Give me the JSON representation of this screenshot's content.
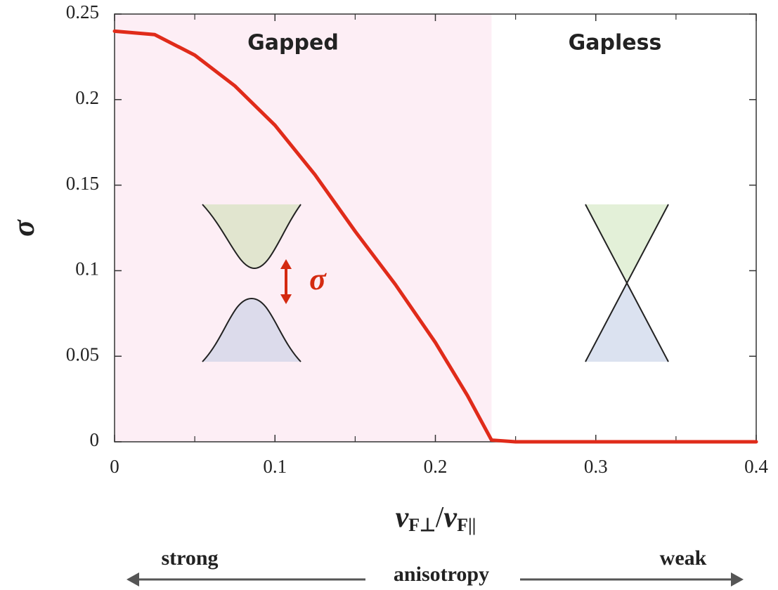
{
  "chart_data": {
    "type": "line",
    "x": [
      0,
      0.025,
      0.05,
      0.075,
      0.1,
      0.125,
      0.15,
      0.175,
      0.2,
      0.22,
      0.235,
      0.25,
      0.3,
      0.35,
      0.4
    ],
    "values": [
      0.24,
      0.238,
      0.226,
      0.208,
      0.185,
      0.156,
      0.123,
      0.092,
      0.058,
      0.027,
      0.001,
      0,
      0,
      0,
      0
    ],
    "color": "#e02b1a",
    "xlim": [
      0,
      0.4
    ],
    "xticks": [
      0,
      0.1,
      0.2,
      0.3,
      0.4
    ],
    "xminorticks": [
      0.05,
      0.15,
      0.25,
      0.35
    ],
    "ylim": [
      0,
      0.25
    ],
    "yticks": [
      0,
      0.05,
      0.1,
      0.15,
      0.2,
      0.25
    ],
    "ylabel": "σ",
    "xlabel": {
      "v1": "v",
      "sub1": "F⊥",
      "slash": "/",
      "v2": "v",
      "sub2": "F||"
    },
    "shaded_region": {
      "xlim": [
        0,
        0.235
      ],
      "color": "#fdeef5"
    },
    "region_labels": [
      "Gapped",
      "Gapless"
    ],
    "inset_label": "σ",
    "anisotropy": {
      "left": "strong",
      "center": "anisotropy",
      "right": "weak"
    }
  }
}
